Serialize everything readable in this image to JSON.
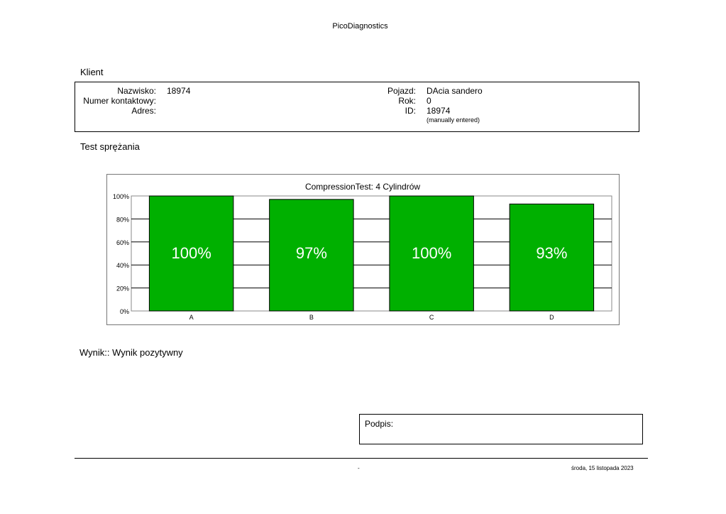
{
  "header": {
    "app_title": "PicoDiagnostics"
  },
  "client": {
    "section_title": "Klient",
    "name_label": "Nazwisko:",
    "name_value": "18974",
    "contact_label": "Numer kontaktowy:",
    "contact_value": "",
    "address_label": "Adres:",
    "address_value": "",
    "vehicle_label": "Pojazd:",
    "vehicle_value": "DAcia sandero",
    "year_label": "Rok:",
    "year_value": "0",
    "id_label": "ID:",
    "id_value": "18974",
    "id_note": "(manually entered)"
  },
  "test": {
    "section_title": "Test sprężania"
  },
  "chart_data": {
    "type": "bar",
    "title": "CompressionTest: 4 Cylindrów",
    "categories": [
      "A",
      "B",
      "C",
      "D"
    ],
    "values": [
      100,
      97,
      100,
      93
    ],
    "data_labels": [
      "100%",
      "97%",
      "100%",
      "93%"
    ],
    "yticks": [
      "0%",
      "20%",
      "40%",
      "60%",
      "80%",
      "100%"
    ],
    "ylim": [
      0,
      100
    ],
    "grid": true,
    "bar_color": "#00b000"
  },
  "result": {
    "text": "Wynik:: Wynik pozytywny"
  },
  "signature": {
    "label": "Podpis:"
  },
  "footer": {
    "center_text": "-",
    "date_text": "środa, 15 listopada 2023"
  }
}
